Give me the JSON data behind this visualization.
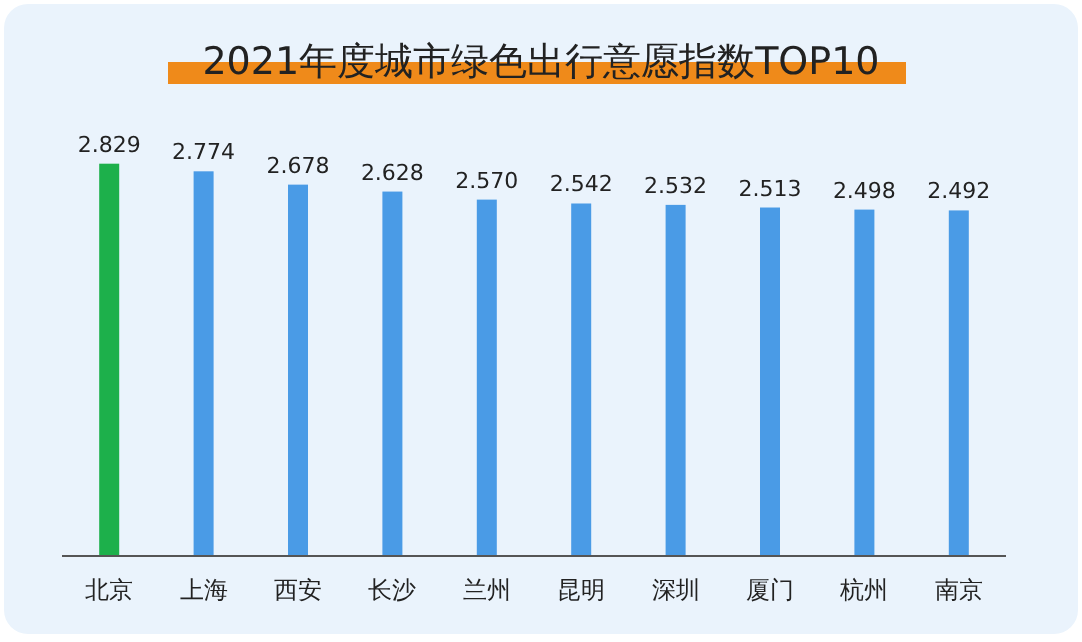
{
  "chart_data": {
    "type": "bar",
    "title": "2021年度城市绿色出行意愿指数TOP10",
    "categories": [
      "北京",
      "上海",
      "西安",
      "长沙",
      "兰州",
      "昆明",
      "深圳",
      "厦门",
      "杭州",
      "南京"
    ],
    "values": [
      2.829,
      2.774,
      2.678,
      2.628,
      2.57,
      2.542,
      2.532,
      2.513,
      2.498,
      2.492
    ],
    "value_labels": [
      "2.829",
      "2.774",
      "2.678",
      "2.628",
      "2.570",
      "2.542",
      "2.532",
      "2.513",
      "2.498",
      "2.492"
    ],
    "colors": [
      "#1db04b",
      "#4a9be6",
      "#4a9be6",
      "#4a9be6",
      "#4a9be6",
      "#4a9be6",
      "#4a9be6",
      "#4a9be6",
      "#4a9be6",
      "#4a9be6"
    ],
    "tick_labels": "x"
  }
}
